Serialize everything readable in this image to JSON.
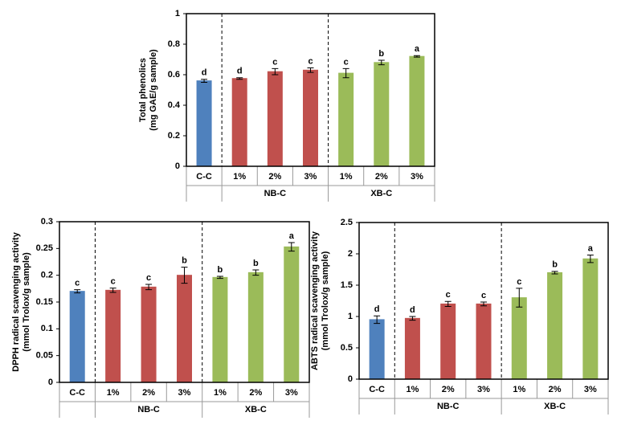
{
  "chart_data": [
    {
      "type": "bar",
      "y_label": [
        "Total phenolics",
        "(mg GAE/g sample)"
      ],
      "categories": [
        "C-C",
        "1%",
        "2%",
        "3%",
        "1%",
        "2%",
        "3%"
      ],
      "category_groups": [
        null,
        "NB-C",
        "NB-C",
        "NB-C",
        "XB-C",
        "XB-C",
        "XB-C"
      ],
      "values": [
        0.56,
        0.575,
        0.62,
        0.63,
        0.61,
        0.68,
        0.72
      ],
      "errors": [
        0.01,
        0.005,
        0.02,
        0.015,
        0.03,
        0.015,
        0.005
      ],
      "annotations": [
        "d",
        "d",
        "c",
        "c",
        "c",
        "b",
        "a"
      ],
      "colors": [
        "#4f81bd",
        "#c0504d",
        "#c0504d",
        "#c0504d",
        "#9bbb59",
        "#9bbb59",
        "#9bbb59"
      ],
      "ylim": [
        0,
        1
      ],
      "yticks": [
        0,
        0.2,
        0.4,
        0.6,
        0.8,
        1
      ]
    },
    {
      "type": "bar",
      "y_label": [
        "DPPH radical scavenging activity",
        "(mmol Trolox/g sample)"
      ],
      "categories": [
        "C-C",
        "1%",
        "2%",
        "3%",
        "1%",
        "2%",
        "3%"
      ],
      "category_groups": [
        null,
        "NB-C",
        "NB-C",
        "NB-C",
        "XB-C",
        "XB-C",
        "XB-C"
      ],
      "values": [
        0.17,
        0.172,
        0.178,
        0.2,
        0.196,
        0.205,
        0.253
      ],
      "errors": [
        0.003,
        0.004,
        0.005,
        0.015,
        0.002,
        0.005,
        0.008
      ],
      "annotations": [
        "c",
        "c",
        "c",
        "b",
        "b",
        "b",
        "a"
      ],
      "colors": [
        "#4f81bd",
        "#c0504d",
        "#c0504d",
        "#c0504d",
        "#9bbb59",
        "#9bbb59",
        "#9bbb59"
      ],
      "ylim": [
        0,
        0.3
      ],
      "yticks": [
        0,
        0.05,
        0.1,
        0.15,
        0.2,
        0.25,
        0.3
      ]
    },
    {
      "type": "bar",
      "y_label": [
        "ABTS radical scavenging activity",
        "(mmol Trolox/g sample)"
      ],
      "categories": [
        "C-C",
        "1%",
        "2%",
        "3%",
        "1%",
        "2%",
        "3%"
      ],
      "category_groups": [
        null,
        "NB-C",
        "NB-C",
        "NB-C",
        "XB-C",
        "XB-C",
        "XB-C"
      ],
      "values": [
        0.95,
        0.97,
        1.2,
        1.2,
        1.3,
        1.7,
        1.92
      ],
      "errors": [
        0.06,
        0.03,
        0.04,
        0.03,
        0.15,
        0.02,
        0.06
      ],
      "annotations": [
        "d",
        "d",
        "c",
        "c",
        "c",
        "b",
        "a"
      ],
      "colors": [
        "#4f81bd",
        "#c0504d",
        "#c0504d",
        "#c0504d",
        "#9bbb59",
        "#9bbb59",
        "#9bbb59"
      ],
      "ylim": [
        0,
        2.5
      ],
      "yticks": [
        0,
        0.5,
        1,
        1.5,
        2,
        2.5
      ]
    }
  ]
}
